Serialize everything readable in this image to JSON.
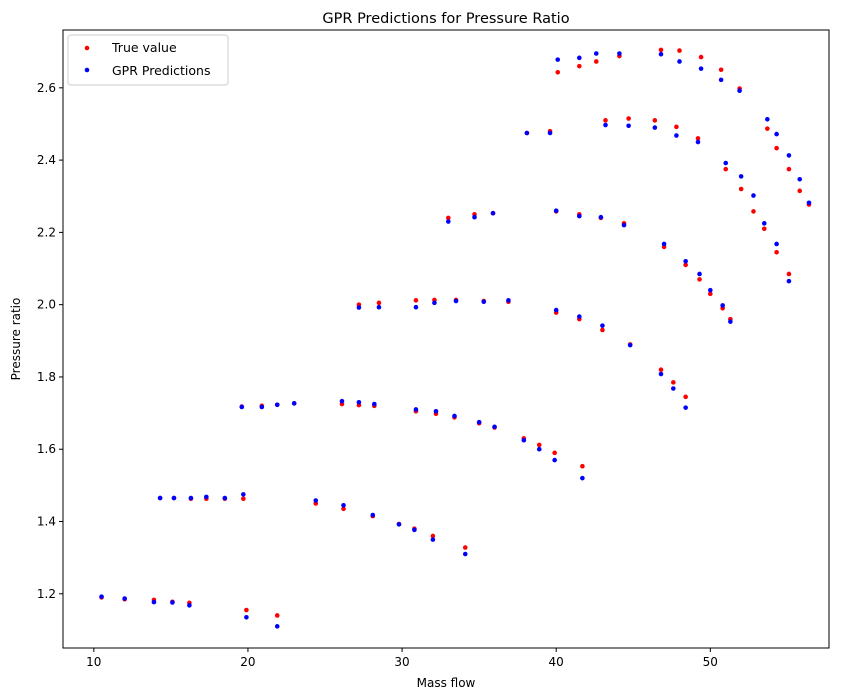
{
  "chart_data": {
    "type": "scatter",
    "title": "GPR Predictions for Pressure Ratio",
    "xlabel": "Mass flow",
    "ylabel": "Pressure ratio",
    "xlim": [
      8,
      57.7
    ],
    "ylim": [
      1.05,
      2.76
    ],
    "xticks": [
      10,
      20,
      30,
      40,
      50
    ],
    "yticks": [
      1.2,
      1.4,
      1.6,
      1.8,
      2.0,
      2.2,
      2.4,
      2.6
    ],
    "legend": "upper-left",
    "grid": false,
    "series": [
      {
        "name": "True value",
        "color": "#ff0000",
        "points": [
          [
            10.5,
            1.19
          ],
          [
            12.0,
            1.185
          ],
          [
            13.9,
            1.183
          ],
          [
            15.1,
            1.178
          ],
          [
            16.2,
            1.175
          ],
          [
            19.9,
            1.155
          ],
          [
            21.9,
            1.14
          ],
          [
            14.3,
            1.465
          ],
          [
            15.2,
            1.465
          ],
          [
            16.3,
            1.463
          ],
          [
            17.3,
            1.463
          ],
          [
            18.5,
            1.463
          ],
          [
            19.7,
            1.463
          ],
          [
            24.4,
            1.45
          ],
          [
            26.2,
            1.435
          ],
          [
            28.1,
            1.415
          ],
          [
            29.8,
            1.393
          ],
          [
            30.8,
            1.38
          ],
          [
            32.0,
            1.36
          ],
          [
            34.1,
            1.328
          ],
          [
            19.6,
            1.718
          ],
          [
            20.9,
            1.72
          ],
          [
            21.9,
            1.723
          ],
          [
            23.0,
            1.727
          ],
          [
            26.1,
            1.725
          ],
          [
            27.2,
            1.722
          ],
          [
            28.2,
            1.72
          ],
          [
            30.9,
            1.705
          ],
          [
            32.2,
            1.698
          ],
          [
            33.4,
            1.688
          ],
          [
            35.0,
            1.672
          ],
          [
            36.0,
            1.66
          ],
          [
            37.9,
            1.63
          ],
          [
            38.9,
            1.612
          ],
          [
            39.9,
            1.59
          ],
          [
            41.7,
            1.553
          ],
          [
            27.2,
            2.0
          ],
          [
            28.5,
            2.005
          ],
          [
            30.9,
            2.012
          ],
          [
            32.1,
            2.013
          ],
          [
            33.5,
            2.013
          ],
          [
            35.3,
            2.01
          ],
          [
            36.9,
            2.008
          ],
          [
            40.0,
            1.978
          ],
          [
            41.5,
            1.96
          ],
          [
            43.0,
            1.93
          ],
          [
            44.8,
            1.89
          ],
          [
            46.8,
            1.82
          ],
          [
            47.6,
            1.785
          ],
          [
            48.4,
            1.745
          ],
          [
            33.0,
            2.24
          ],
          [
            34.7,
            2.25
          ],
          [
            35.9,
            2.253
          ],
          [
            40.0,
            2.258
          ],
          [
            41.5,
            2.25
          ],
          [
            42.9,
            2.24
          ],
          [
            44.4,
            2.225
          ],
          [
            47.0,
            2.16
          ],
          [
            48.4,
            2.11
          ],
          [
            49.3,
            2.07
          ],
          [
            50.0,
            2.03
          ],
          [
            50.8,
            1.99
          ],
          [
            51.3,
            1.96
          ],
          [
            38.1,
            2.475
          ],
          [
            39.6,
            2.48
          ],
          [
            43.2,
            2.51
          ],
          [
            44.7,
            2.515
          ],
          [
            46.4,
            2.51
          ],
          [
            47.8,
            2.492
          ],
          [
            49.2,
            2.46
          ],
          [
            51.0,
            2.375
          ],
          [
            52.0,
            2.32
          ],
          [
            52.8,
            2.258
          ],
          [
            53.5,
            2.21
          ],
          [
            54.3,
            2.145
          ],
          [
            55.1,
            2.085
          ],
          [
            40.1,
            2.643
          ],
          [
            41.5,
            2.66
          ],
          [
            42.6,
            2.673
          ],
          [
            44.1,
            2.688
          ],
          [
            46.8,
            2.705
          ],
          [
            48.0,
            2.703
          ],
          [
            49.4,
            2.685
          ],
          [
            50.7,
            2.65
          ],
          [
            51.9,
            2.598
          ],
          [
            53.7,
            2.487
          ],
          [
            54.3,
            2.433
          ],
          [
            55.1,
            2.375
          ],
          [
            55.8,
            2.315
          ],
          [
            56.4,
            2.277
          ]
        ]
      },
      {
        "name": "GPR Predictions",
        "color": "#0000ff",
        "points": [
          [
            10.5,
            1.192
          ],
          [
            12.0,
            1.187
          ],
          [
            13.9,
            1.177
          ],
          [
            15.1,
            1.176
          ],
          [
            16.2,
            1.168
          ],
          [
            19.9,
            1.135
          ],
          [
            21.9,
            1.11
          ],
          [
            14.3,
            1.465
          ],
          [
            15.2,
            1.465
          ],
          [
            16.3,
            1.465
          ],
          [
            17.3,
            1.468
          ],
          [
            18.5,
            1.465
          ],
          [
            19.7,
            1.475
          ],
          [
            24.4,
            1.458
          ],
          [
            26.2,
            1.445
          ],
          [
            28.1,
            1.418
          ],
          [
            29.8,
            1.392
          ],
          [
            30.8,
            1.377
          ],
          [
            32.0,
            1.35
          ],
          [
            34.1,
            1.31
          ],
          [
            19.6,
            1.717
          ],
          [
            20.9,
            1.717
          ],
          [
            21.9,
            1.723
          ],
          [
            23.0,
            1.727
          ],
          [
            26.1,
            1.733
          ],
          [
            27.2,
            1.73
          ],
          [
            28.2,
            1.725
          ],
          [
            30.9,
            1.71
          ],
          [
            32.2,
            1.705
          ],
          [
            33.4,
            1.692
          ],
          [
            35.0,
            1.675
          ],
          [
            36.0,
            1.662
          ],
          [
            37.9,
            1.625
          ],
          [
            38.9,
            1.6
          ],
          [
            39.9,
            1.57
          ],
          [
            41.7,
            1.52
          ],
          [
            27.2,
            1.992
          ],
          [
            28.5,
            1.993
          ],
          [
            30.9,
            1.993
          ],
          [
            32.1,
            2.005
          ],
          [
            33.5,
            2.01
          ],
          [
            35.3,
            2.008
          ],
          [
            36.9,
            2.012
          ],
          [
            40.0,
            1.985
          ],
          [
            41.5,
            1.967
          ],
          [
            43.0,
            1.942
          ],
          [
            44.8,
            1.888
          ],
          [
            46.8,
            1.808
          ],
          [
            47.6,
            1.768
          ],
          [
            48.4,
            1.715
          ],
          [
            33.0,
            2.23
          ],
          [
            34.7,
            2.242
          ],
          [
            35.9,
            2.253
          ],
          [
            40.0,
            2.26
          ],
          [
            41.5,
            2.245
          ],
          [
            42.9,
            2.242
          ],
          [
            44.4,
            2.22
          ],
          [
            47.0,
            2.168
          ],
          [
            48.4,
            2.12
          ],
          [
            49.3,
            2.085
          ],
          [
            50.0,
            2.04
          ],
          [
            50.8,
            1.998
          ],
          [
            51.3,
            1.953
          ],
          [
            38.1,
            2.475
          ],
          [
            39.6,
            2.475
          ],
          [
            43.2,
            2.497
          ],
          [
            44.7,
            2.495
          ],
          [
            46.4,
            2.49
          ],
          [
            47.8,
            2.468
          ],
          [
            49.2,
            2.45
          ],
          [
            51.0,
            2.392
          ],
          [
            52.0,
            2.355
          ],
          [
            52.8,
            2.302
          ],
          [
            53.5,
            2.225
          ],
          [
            54.3,
            2.168
          ],
          [
            55.1,
            2.065
          ],
          [
            40.1,
            2.678
          ],
          [
            41.5,
            2.683
          ],
          [
            42.6,
            2.695
          ],
          [
            44.1,
            2.695
          ],
          [
            46.8,
            2.693
          ],
          [
            48.0,
            2.673
          ],
          [
            49.4,
            2.653
          ],
          [
            50.7,
            2.622
          ],
          [
            51.9,
            2.592
          ],
          [
            53.7,
            2.513
          ],
          [
            54.3,
            2.472
          ],
          [
            55.1,
            2.413
          ],
          [
            55.8,
            2.347
          ],
          [
            56.4,
            2.282
          ]
        ]
      }
    ]
  }
}
